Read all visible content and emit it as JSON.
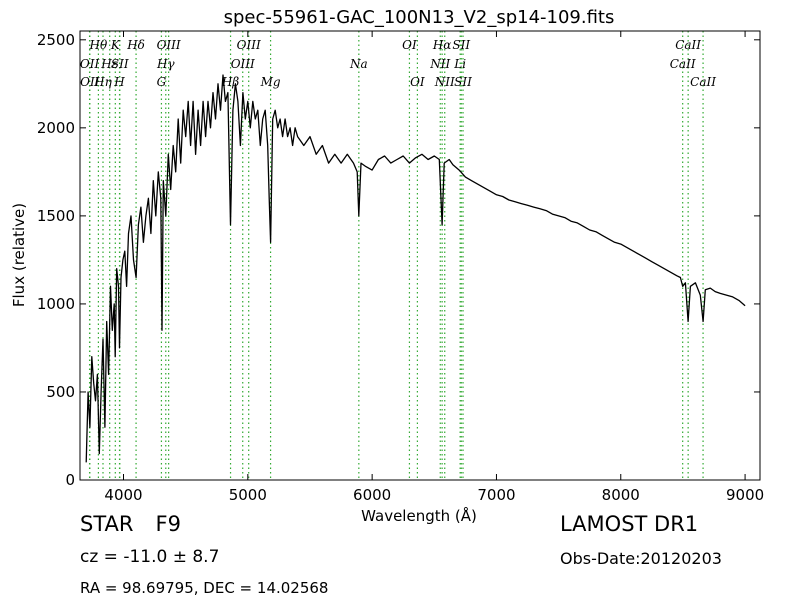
{
  "header": {
    "title": "spec-55961-GAC_100N13_V2_sp14-109.fits"
  },
  "info": {
    "object_class": "STAR",
    "subclass": "F9",
    "survey": "LAMOST DR1",
    "redshift": "cz = -11.0 ± 8.7",
    "obs_date": "Obs-Date:20120203",
    "coordinates": "RA = 98.69795, DEC = 14.02568"
  },
  "chart_data": {
    "type": "line",
    "title": "spec-55961-GAC_100N13_V2_sp14-109.fits",
    "xlabel": "Wavelength (Å)",
    "ylabel": "Flux (relative)",
    "xlim": [
      3650,
      9120
    ],
    "ylim": [
      0,
      2550
    ],
    "xticks": [
      4000,
      5000,
      6000,
      7000,
      8000,
      9000
    ],
    "yticks": [
      0,
      500,
      1000,
      1500,
      2000,
      2500
    ],
    "series": [
      {
        "color": "#000000",
        "x": [
          3700,
          3715,
          3730,
          3745,
          3760,
          3775,
          3790,
          3805,
          3820,
          3835,
          3850,
          3865,
          3880,
          3895,
          3910,
          3925,
          3933,
          3945,
          3960,
          3968,
          3980,
          3995,
          4010,
          4025,
          4040,
          4060,
          4080,
          4101,
          4120,
          4140,
          4160,
          4180,
          4200,
          4220,
          4240,
          4260,
          4280,
          4300,
          4310,
          4320,
          4340,
          4360,
          4380,
          4400,
          4420,
          4440,
          4460,
          4480,
          4500,
          4520,
          4540,
          4560,
          4580,
          4600,
          4620,
          4640,
          4660,
          4680,
          4700,
          4720,
          4740,
          4760,
          4780,
          4800,
          4820,
          4840,
          4861,
          4880,
          4900,
          4920,
          4940,
          4960,
          4980,
          5000,
          5020,
          5040,
          5060,
          5080,
          5100,
          5120,
          5140,
          5160,
          5172,
          5183,
          5200,
          5220,
          5240,
          5260,
          5280,
          5300,
          5320,
          5340,
          5360,
          5380,
          5400,
          5450,
          5500,
          5550,
          5600,
          5650,
          5700,
          5750,
          5800,
          5850,
          5880,
          5893,
          5910,
          5950,
          6000,
          6050,
          6100,
          6150,
          6200,
          6250,
          6300,
          6350,
          6400,
          6450,
          6500,
          6540,
          6563,
          6580,
          6620,
          6650,
          6700,
          6750,
          6800,
          6850,
          6900,
          6950,
          7000,
          7050,
          7100,
          7150,
          7200,
          7250,
          7300,
          7350,
          7400,
          7450,
          7500,
          7550,
          7600,
          7650,
          7700,
          7750,
          7800,
          7850,
          7900,
          7950,
          8000,
          8050,
          8100,
          8150,
          8200,
          8250,
          8300,
          8350,
          8400,
          8450,
          8480,
          8498,
          8520,
          8542,
          8560,
          8600,
          8640,
          8662,
          8680,
          8720,
          8760,
          8800,
          8850,
          8900,
          8950,
          9000
        ],
        "y": [
          100,
          500,
          300,
          700,
          550,
          450,
          600,
          150,
          500,
          800,
          300,
          900,
          600,
          1100,
          850,
          1000,
          700,
          1200,
          1100,
          750,
          1150,
          1250,
          1300,
          1100,
          1400,
          1500,
          1250,
          1150,
          1450,
          1550,
          1350,
          1500,
          1600,
          1400,
          1700,
          1500,
          1750,
          1600,
          850,
          1700,
          1500,
          1850,
          1650,
          1900,
          1750,
          2050,
          1800,
          2100,
          1950,
          2150,
          1900,
          2150,
          1850,
          2100,
          1900,
          2150,
          1950,
          2150,
          2000,
          2200,
          2050,
          2250,
          2100,
          2300,
          2150,
          2200,
          1450,
          2100,
          2250,
          2150,
          1900,
          2200,
          2050,
          2150,
          2000,
          2150,
          2050,
          2100,
          1900,
          2050,
          2100,
          1900,
          1600,
          1350,
          2050,
          2100,
          2000,
          2050,
          1950,
          2050,
          1950,
          2000,
          1900,
          2000,
          1950,
          1900,
          1950,
          1850,
          1900,
          1800,
          1850,
          1800,
          1850,
          1800,
          1750,
          1500,
          1800,
          1780,
          1760,
          1820,
          1840,
          1800,
          1820,
          1840,
          1800,
          1830,
          1850,
          1820,
          1840,
          1820,
          1450,
          1800,
          1820,
          1790,
          1760,
          1720,
          1700,
          1680,
          1660,
          1640,
          1620,
          1610,
          1590,
          1580,
          1570,
          1560,
          1550,
          1540,
          1530,
          1510,
          1500,
          1490,
          1470,
          1460,
          1440,
          1420,
          1410,
          1390,
          1370,
          1350,
          1340,
          1320,
          1300,
          1280,
          1260,
          1240,
          1220,
          1200,
          1180,
          1160,
          1150,
          1100,
          1120,
          900,
          1100,
          1120,
          1050,
          900,
          1080,
          1090,
          1070,
          1060,
          1050,
          1040,
          1020,
          990
        ]
      }
    ],
    "lines": [
      {
        "name": "OII",
        "wavelength": 3727,
        "row": 2
      },
      {
        "name": "OII",
        "wavelength": 3729,
        "row": 3
      },
      {
        "name": "Hθ",
        "wavelength": 3798,
        "row": 1
      },
      {
        "name": "Hη",
        "wavelength": 3835,
        "row": 3
      },
      {
        "name": "Hε",
        "wavelength": 3889,
        "row": 2
      },
      {
        "name": "K",
        "wavelength": 3934,
        "row": 1
      },
      {
        "name": "SII",
        "wavelength": 3970,
        "row": 2
      },
      {
        "name": "H",
        "wavelength": 3968,
        "row": 3
      },
      {
        "name": "Hδ",
        "wavelength": 4101,
        "row": 1
      },
      {
        "name": "OIII",
        "wavelength": 4363,
        "row": 1
      },
      {
        "name": "Hγ",
        "wavelength": 4340,
        "row": 2
      },
      {
        "name": "G",
        "wavelength": 4305,
        "row": 3
      },
      {
        "name": "OIII",
        "wavelength": 5007,
        "row": 1
      },
      {
        "name": "OIII",
        "wavelength": 4959,
        "row": 2
      },
      {
        "name": "Hβ",
        "wavelength": 4861,
        "row": 3
      },
      {
        "name": "Mg",
        "wavelength": 5183,
        "row": 3
      },
      {
        "name": "Na",
        "wavelength": 5893,
        "row": 2
      },
      {
        "name": "OI",
        "wavelength": 6300,
        "row": 1
      },
      {
        "name": "OI",
        "wavelength": 6364,
        "row": 3
      },
      {
        "name": "Hα",
        "wavelength": 6563,
        "row": 1
      },
      {
        "name": "NII",
        "wavelength": 6548,
        "row": 2
      },
      {
        "name": "NII",
        "wavelength": 6584,
        "row": 3
      },
      {
        "name": "SII",
        "wavelength": 6717,
        "row": 1
      },
      {
        "name": "Li",
        "wavelength": 6708,
        "row": 2
      },
      {
        "name": "SII",
        "wavelength": 6731,
        "row": 3
      },
      {
        "name": "CaII",
        "wavelength": 8542,
        "row": 1
      },
      {
        "name": "CaII",
        "wavelength": 8498,
        "row": 2
      },
      {
        "name": "CaII",
        "wavelength": 8662,
        "row": 3
      }
    ],
    "colors": {
      "spectrum": "#000000",
      "line_markers": "#33aa33",
      "frame": "#000000"
    }
  }
}
